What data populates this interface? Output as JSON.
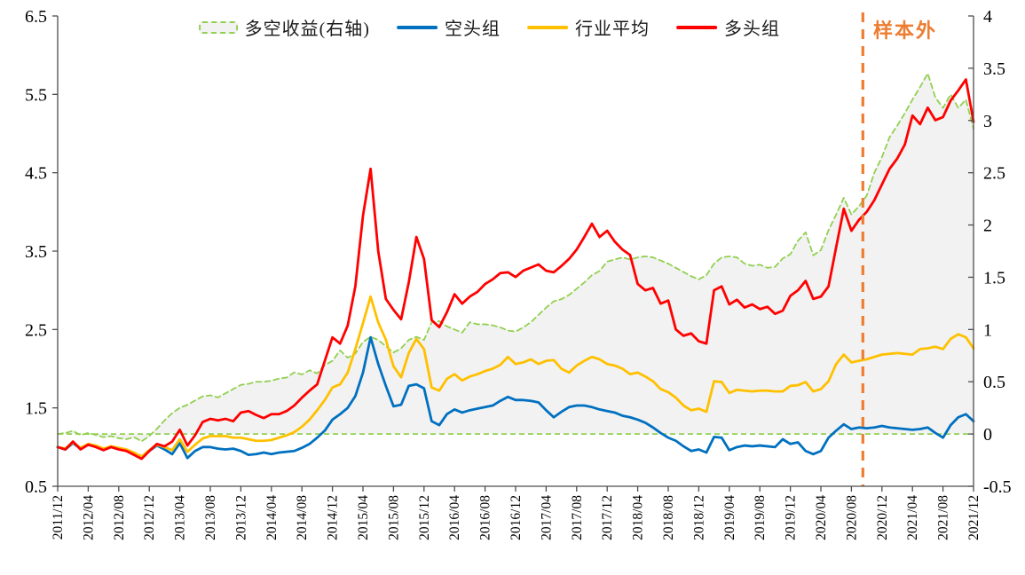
{
  "annotation_label": "样本外",
  "colors": {
    "long_short": "#92d050",
    "area_fill": "#f2f2f2",
    "short": "#0070c0",
    "industry": "#ffc000",
    "long": "#ff0000",
    "out_of_sample": "#ed7d31",
    "axis": "#4d4d4d",
    "tick_text": "#000000"
  },
  "chart_data": {
    "type": "line",
    "title": "",
    "xlabel": "",
    "ylabel_left": "",
    "ylabel_right": "",
    "grid": false,
    "legend_position": "top",
    "x_months": 121,
    "x_tick_every": 4,
    "x_tick_labels": [
      "2011/12",
      "2012/04",
      "2012/08",
      "2012/12",
      "2013/04",
      "2013/08",
      "2013/12",
      "2014/04",
      "2014/08",
      "2014/12",
      "2015/04",
      "2015/08",
      "2015/12",
      "2016/04",
      "2016/08",
      "2016/12",
      "2017/04",
      "2017/08",
      "2017/12",
      "2018/04",
      "2018/08",
      "2018/12",
      "2019/04",
      "2019/08",
      "2019/12",
      "2020/04",
      "2020/08",
      "2020/12",
      "2021/04",
      "2021/08",
      "2021/12"
    ],
    "left_axis": {
      "min": 0.5,
      "max": 6.5,
      "tick_labels": [
        "6.5",
        "5.5",
        "4.5",
        "3.5",
        "2.5",
        "1.5",
        "0.5"
      ]
    },
    "right_axis": {
      "min": -0.5,
      "max": 4.0,
      "tick_labels": [
        "4",
        "3.5",
        "3",
        "2.5",
        "2",
        "1.5",
        "1",
        "0.5",
        "0",
        "-0.5"
      ]
    },
    "reference_zero_line": {
      "axis": "right",
      "value": 0,
      "style": "dashed",
      "color": "#92d050"
    },
    "annotation": {
      "label": "样本外",
      "x_month": 105.5,
      "line_color": "#ed7d31",
      "line_style": "dashed"
    },
    "series": [
      {
        "name": "多空收益(右轴)",
        "axis": "right",
        "style": "dashed-area",
        "color": "#92d050",
        "fill": "#f2f2f2",
        "values": [
          0.0,
          0.01,
          0.03,
          -0.01,
          0.01,
          -0.01,
          -0.03,
          -0.02,
          -0.04,
          -0.05,
          -0.03,
          -0.07,
          -0.02,
          0.05,
          0.13,
          0.2,
          0.25,
          0.28,
          0.32,
          0.36,
          0.37,
          0.35,
          0.39,
          0.43,
          0.47,
          0.48,
          0.5,
          0.5,
          0.51,
          0.53,
          0.54,
          0.59,
          0.57,
          0.61,
          0.58,
          0.66,
          0.7,
          0.8,
          0.73,
          0.77,
          0.88,
          0.93,
          0.9,
          0.84,
          0.78,
          0.82,
          0.9,
          0.93,
          0.9,
          1.07,
          1.08,
          1.03,
          1.0,
          0.97,
          1.07,
          1.05,
          1.05,
          1.04,
          1.02,
          0.99,
          0.98,
          1.02,
          1.07,
          1.14,
          1.21,
          1.27,
          1.29,
          1.33,
          1.39,
          1.45,
          1.52,
          1.56,
          1.65,
          1.67,
          1.69,
          1.67,
          1.69,
          1.7,
          1.69,
          1.66,
          1.63,
          1.59,
          1.55,
          1.51,
          1.48,
          1.52,
          1.63,
          1.69,
          1.7,
          1.69,
          1.63,
          1.61,
          1.62,
          1.59,
          1.6,
          1.68,
          1.72,
          1.85,
          1.93,
          1.71,
          1.76,
          1.95,
          2.1,
          2.26,
          2.1,
          2.18,
          2.28,
          2.5,
          2.65,
          2.84,
          2.95,
          3.07,
          3.2,
          3.32,
          3.45,
          3.22,
          3.12,
          3.25,
          3.12,
          3.2,
          2.92
        ]
      },
      {
        "name": "空头组",
        "axis": "left",
        "style": "solid",
        "color": "#0070c0",
        "values": [
          1.0,
          0.97,
          1.05,
          0.98,
          1.03,
          1.01,
          0.97,
          1.0,
          0.98,
          0.96,
          0.92,
          0.87,
          0.95,
          1.02,
          0.97,
          0.91,
          1.05,
          0.86,
          0.95,
          1.0,
          1.0,
          0.98,
          0.97,
          0.98,
          0.95,
          0.9,
          0.91,
          0.93,
          0.91,
          0.93,
          0.94,
          0.95,
          0.99,
          1.04,
          1.12,
          1.21,
          1.35,
          1.42,
          1.5,
          1.65,
          1.95,
          2.4,
          2.06,
          1.78,
          1.52,
          1.54,
          1.78,
          1.8,
          1.75,
          1.33,
          1.28,
          1.42,
          1.48,
          1.44,
          1.47,
          1.49,
          1.51,
          1.53,
          1.59,
          1.64,
          1.6,
          1.6,
          1.59,
          1.57,
          1.47,
          1.38,
          1.45,
          1.51,
          1.53,
          1.53,
          1.51,
          1.48,
          1.46,
          1.44,
          1.4,
          1.38,
          1.35,
          1.31,
          1.25,
          1.18,
          1.12,
          1.08,
          1.01,
          0.95,
          0.97,
          0.93,
          1.13,
          1.12,
          0.96,
          1.0,
          1.02,
          1.01,
          1.02,
          1.01,
          1.0,
          1.1,
          1.04,
          1.06,
          0.95,
          0.91,
          0.95,
          1.12,
          1.21,
          1.29,
          1.23,
          1.25,
          1.24,
          1.25,
          1.27,
          1.25,
          1.24,
          1.23,
          1.22,
          1.23,
          1.25,
          1.18,
          1.12,
          1.28,
          1.38,
          1.42,
          1.33
        ]
      },
      {
        "name": "行业平均",
        "axis": "left",
        "style": "solid",
        "color": "#ffc000",
        "values": [
          1.0,
          0.98,
          1.06,
          0.99,
          1.04,
          1.02,
          0.98,
          1.01,
          0.99,
          0.97,
          0.93,
          0.88,
          0.96,
          1.03,
          1.0,
          0.96,
          1.1,
          0.94,
          1.03,
          1.11,
          1.14,
          1.14,
          1.14,
          1.12,
          1.12,
          1.1,
          1.08,
          1.08,
          1.09,
          1.12,
          1.15,
          1.19,
          1.26,
          1.35,
          1.47,
          1.6,
          1.76,
          1.8,
          1.95,
          2.25,
          2.58,
          2.92,
          2.59,
          2.37,
          2.03,
          1.89,
          2.2,
          2.38,
          2.25,
          1.76,
          1.72,
          1.87,
          1.93,
          1.85,
          1.9,
          1.93,
          1.97,
          2.0,
          2.05,
          2.15,
          2.06,
          2.08,
          2.12,
          2.06,
          2.1,
          2.11,
          2.0,
          1.95,
          2.04,
          2.1,
          2.15,
          2.12,
          2.06,
          2.04,
          2.0,
          1.93,
          1.95,
          1.9,
          1.84,
          1.74,
          1.7,
          1.63,
          1.53,
          1.47,
          1.49,
          1.45,
          1.84,
          1.83,
          1.69,
          1.73,
          1.72,
          1.71,
          1.72,
          1.72,
          1.71,
          1.71,
          1.78,
          1.79,
          1.83,
          1.71,
          1.74,
          1.84,
          2.06,
          2.18,
          2.08,
          2.1,
          2.12,
          2.15,
          2.18,
          2.19,
          2.2,
          2.19,
          2.18,
          2.25,
          2.26,
          2.28,
          2.25,
          2.38,
          2.44,
          2.4,
          2.26
        ]
      },
      {
        "name": "多头组",
        "axis": "left",
        "style": "solid",
        "color": "#ff0000",
        "values": [
          1.0,
          0.97,
          1.07,
          0.97,
          1.03,
          1.0,
          0.96,
          1.0,
          0.97,
          0.95,
          0.9,
          0.85,
          0.95,
          1.04,
          1.01,
          1.07,
          1.22,
          1.02,
          1.15,
          1.32,
          1.36,
          1.34,
          1.36,
          1.33,
          1.44,
          1.46,
          1.41,
          1.37,
          1.42,
          1.42,
          1.46,
          1.53,
          1.63,
          1.72,
          1.8,
          2.1,
          2.4,
          2.32,
          2.55,
          3.05,
          3.95,
          4.55,
          3.5,
          2.89,
          2.75,
          2.63,
          3.1,
          3.68,
          3.4,
          2.62,
          2.53,
          2.72,
          2.95,
          2.83,
          2.92,
          2.98,
          3.08,
          3.14,
          3.22,
          3.23,
          3.17,
          3.25,
          3.29,
          3.33,
          3.25,
          3.23,
          3.31,
          3.4,
          3.52,
          3.68,
          3.85,
          3.68,
          3.76,
          3.62,
          3.52,
          3.45,
          3.08,
          3.0,
          3.03,
          2.83,
          2.87,
          2.5,
          2.42,
          2.45,
          2.35,
          2.32,
          3.0,
          3.05,
          2.82,
          2.88,
          2.78,
          2.82,
          2.76,
          2.79,
          2.7,
          2.74,
          2.93,
          3.0,
          3.12,
          2.89,
          2.92,
          3.05,
          3.55,
          4.04,
          3.76,
          3.9,
          4.0,
          4.15,
          4.35,
          4.55,
          4.68,
          4.86,
          5.23,
          5.12,
          5.33,
          5.17,
          5.21,
          5.42,
          5.55,
          5.69,
          5.15
        ]
      }
    ]
  }
}
